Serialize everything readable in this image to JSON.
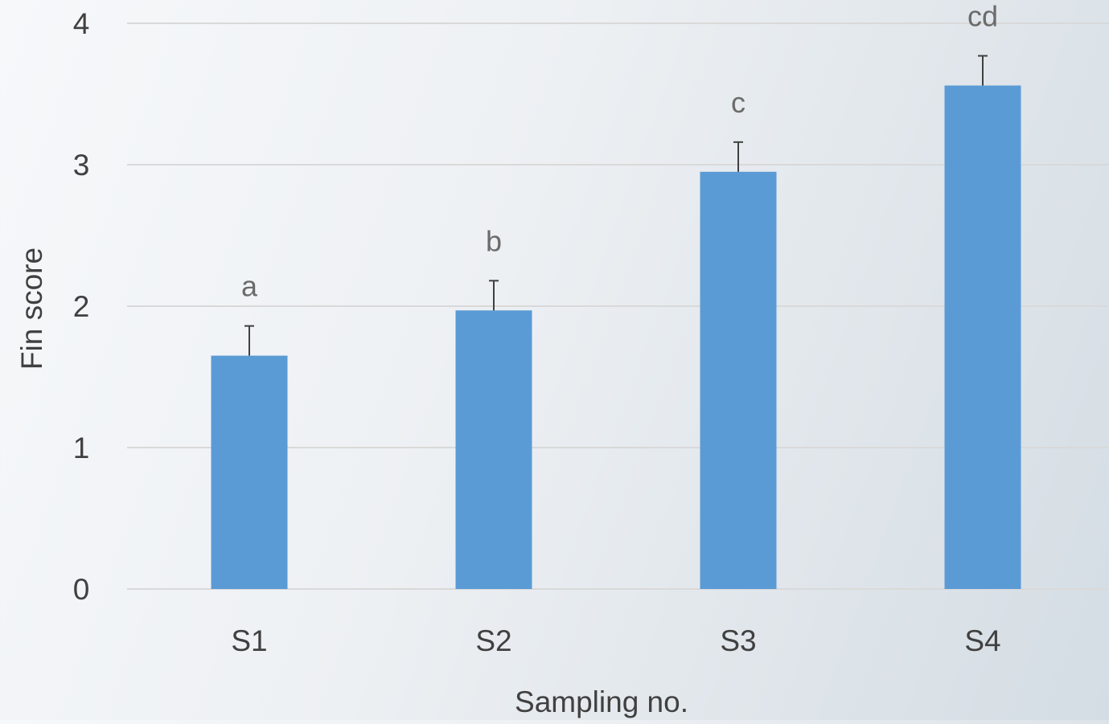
{
  "chart_data": {
    "type": "bar",
    "title": "",
    "xlabel": "Sampling no.",
    "ylabel": "Fin score",
    "categories": [
      "S1",
      "S2",
      "S3",
      "S4"
    ],
    "values": [
      1.65,
      1.97,
      2.95,
      3.56
    ],
    "error_plus": [
      0.21,
      0.21,
      0.21,
      0.21
    ],
    "significance_labels": [
      "a",
      "b",
      "c",
      "cd"
    ],
    "ylim": [
      0,
      4
    ],
    "yticks": [
      "0",
      "1",
      "2",
      "3",
      "4"
    ],
    "grid": true,
    "bar_color": "#5b9bd5",
    "legend": "none"
  }
}
